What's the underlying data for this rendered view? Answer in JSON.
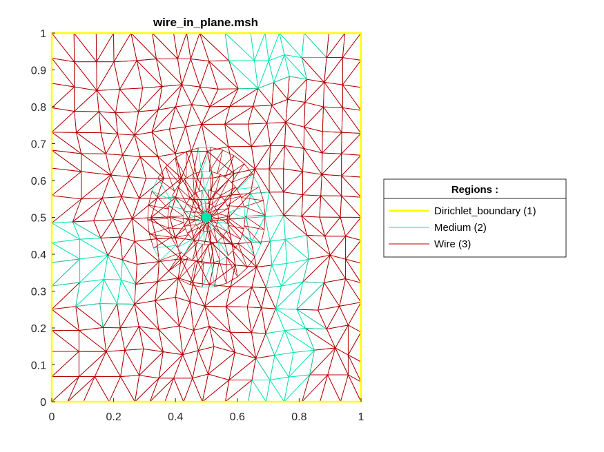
{
  "chart_data": {
    "type": "mesh",
    "title": "wire_in_plane.msh",
    "xlim": [
      0,
      1
    ],
    "ylim": [
      0,
      1
    ],
    "x_ticks": [
      "0",
      "0.2",
      "0.4",
      "0.6",
      "0.8",
      "1"
    ],
    "y_ticks": [
      "0",
      "0.1",
      "0.2",
      "0.3",
      "0.4",
      "0.5",
      "0.6",
      "0.7",
      "0.8",
      "0.9",
      "1"
    ],
    "grid": false,
    "legend": {
      "title": "Regions :",
      "placement": "right-outside",
      "entries": [
        {
          "label": "Dirichlet_boundary (1)",
          "color": "#FFFF00"
        },
        {
          "label": "Medium (2)",
          "color": "#00E5B0"
        },
        {
          "label": "Wire (3)",
          "color": "#B20000"
        }
      ]
    },
    "wire_center": [
      0.5,
      0.5
    ],
    "wire_radius": 0.015,
    "boundary": [
      [
        0,
        0
      ],
      [
        1,
        0
      ],
      [
        1,
        1
      ],
      [
        0,
        1
      ]
    ]
  }
}
